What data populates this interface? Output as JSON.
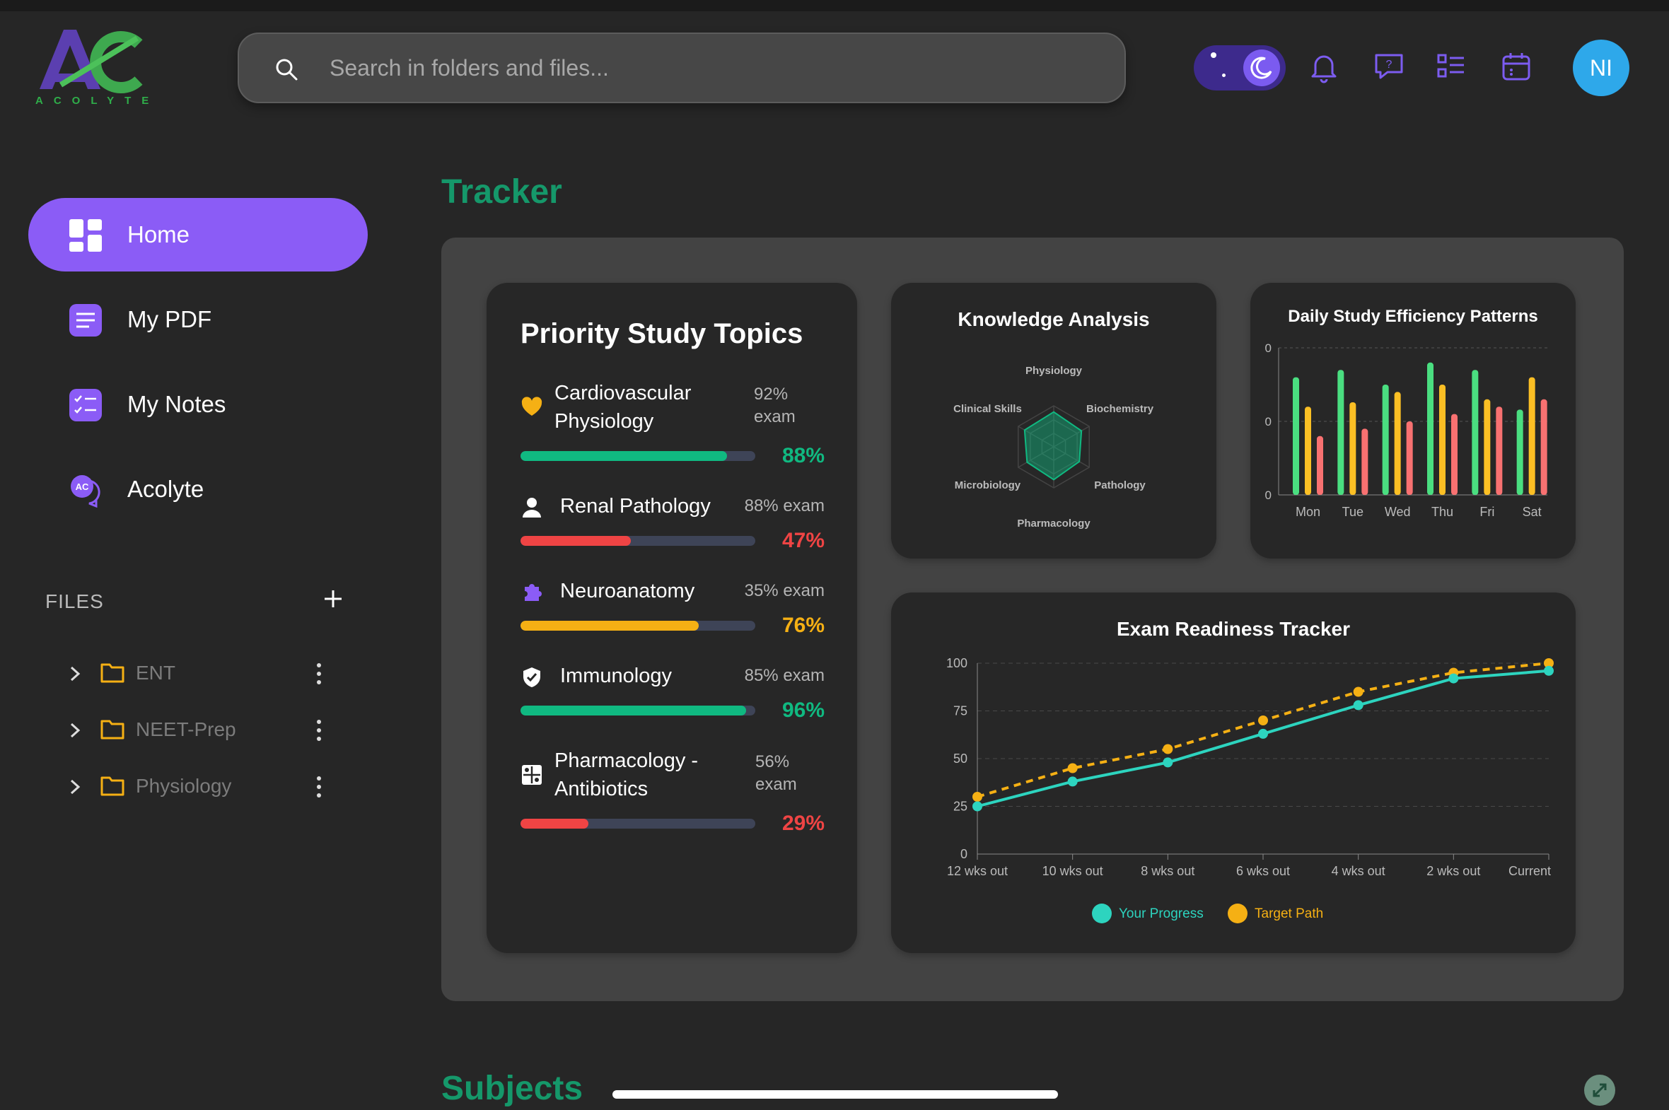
{
  "app": {
    "logo_text": "ACOLYTE",
    "avatar_initials": "NI"
  },
  "search": {
    "placeholder": "Search in folders and files..."
  },
  "sidebar": {
    "items": [
      {
        "label": "Home",
        "icon": "dashboard-icon",
        "active": true
      },
      {
        "label": "My PDF",
        "icon": "document-icon",
        "active": false
      },
      {
        "label": "My Notes",
        "icon": "checklist-icon",
        "active": false
      },
      {
        "label": "Acolyte",
        "icon": "chat-bot-icon",
        "active": false
      }
    ],
    "files_label": "FILES",
    "folders": [
      {
        "name": "ENT"
      },
      {
        "name": "NEET-Prep"
      },
      {
        "name": "Physiology"
      }
    ]
  },
  "main": {
    "tracker_title": "Tracker",
    "subjects_title": "Subjects"
  },
  "priority": {
    "title": "Priority Study Topics",
    "topics": [
      {
        "name_line1": "Cardiovascular",
        "name_line2": "Physiology",
        "exam_line1": "92%",
        "exam_line2": "exam",
        "progress": 88,
        "pct": "88%",
        "color": "#10b981",
        "icon": "heart-icon"
      },
      {
        "name_line1": "Renal Pathology",
        "name_line2": "",
        "exam_line1": "88% exam",
        "exam_line2": "",
        "progress": 47,
        "pct": "47%",
        "color": "#ef4444",
        "icon": "person-icon"
      },
      {
        "name_line1": "Neuroanatomy",
        "name_line2": "",
        "exam_line1": "35% exam",
        "exam_line2": "",
        "progress": 76,
        "pct": "76%",
        "color": "#f5b014",
        "icon": "puzzle-icon"
      },
      {
        "name_line1": "Immunology",
        "name_line2": "",
        "exam_line1": "85% exam",
        "exam_line2": "",
        "progress": 96,
        "pct": "96%",
        "color": "#10b981",
        "icon": "shield-check-icon"
      },
      {
        "name_line1": "Pharmacology -",
        "name_line2": "Antibiotics",
        "exam_line1": "56%",
        "exam_line2": "exam",
        "progress": 29,
        "pct": "29%",
        "color": "#ef4444",
        "icon": "pills-icon"
      }
    ]
  },
  "chart_data": [
    {
      "type": "radar",
      "title": "Knowledge Analysis",
      "axes": [
        "Physiology",
        "Biochemistry",
        "Pathology",
        "Pharmacology",
        "Microbiology",
        "Clinical Skills"
      ],
      "values": [
        85,
        78,
        72,
        80,
        75,
        82
      ],
      "rmax": 100,
      "color": "#10b981"
    },
    {
      "type": "bar",
      "title": "Daily Study Efficiency Patterns",
      "categories": [
        "Mon",
        "Tue",
        "Wed",
        "Thu",
        "Fri",
        "Sat"
      ],
      "y_tick_labels": [
        "0",
        "0",
        "0"
      ],
      "ylim": [
        0,
        100
      ],
      "series": [
        {
          "values": [
            80,
            85,
            75,
            90,
            85,
            58
          ],
          "color": "#4ade80"
        },
        {
          "values": [
            60,
            63,
            70,
            75,
            65,
            80
          ],
          "color": "#fbbf24"
        },
        {
          "values": [
            40,
            45,
            50,
            55,
            60,
            65
          ],
          "color": "#f87171"
        }
      ]
    },
    {
      "type": "line",
      "title": "Exam Readiness Tracker",
      "categories": [
        "12 wks out",
        "10 wks out",
        "8 wks out",
        "6 wks out",
        "4 wks out",
        "2 wks out",
        "Current"
      ],
      "y_ticks": [
        0,
        25,
        50,
        75,
        100
      ],
      "ylim": [
        0,
        100
      ],
      "series": [
        {
          "name": "Your Progress",
          "values": [
            25,
            38,
            48,
            63,
            78,
            92,
            96
          ],
          "color": "#2dd4bf"
        },
        {
          "name": "Target Path",
          "values": [
            30,
            45,
            55,
            70,
            85,
            95,
            100
          ],
          "color": "#f5b014"
        }
      ]
    }
  ]
}
